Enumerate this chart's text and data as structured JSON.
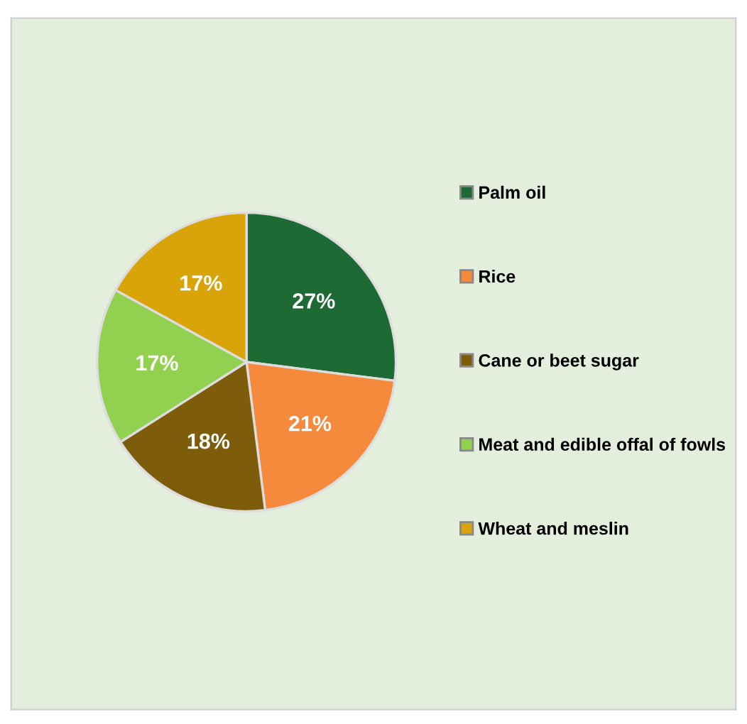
{
  "chart_data": {
    "type": "pie",
    "categories": [
      "Palm oil",
      "Rice",
      "Cane or beet sugar",
      "Meat and edible offal of fowls",
      "Wheat and meslin"
    ],
    "values": [
      27,
      21,
      18,
      17,
      17
    ],
    "colors": [
      "#1d6a34",
      "#f58a3c",
      "#7d5d0b",
      "#92d050",
      "#d9a40a"
    ],
    "value_labels": [
      "27%",
      "21%",
      "18%",
      "17%",
      "17%"
    ],
    "legend": "right"
  }
}
